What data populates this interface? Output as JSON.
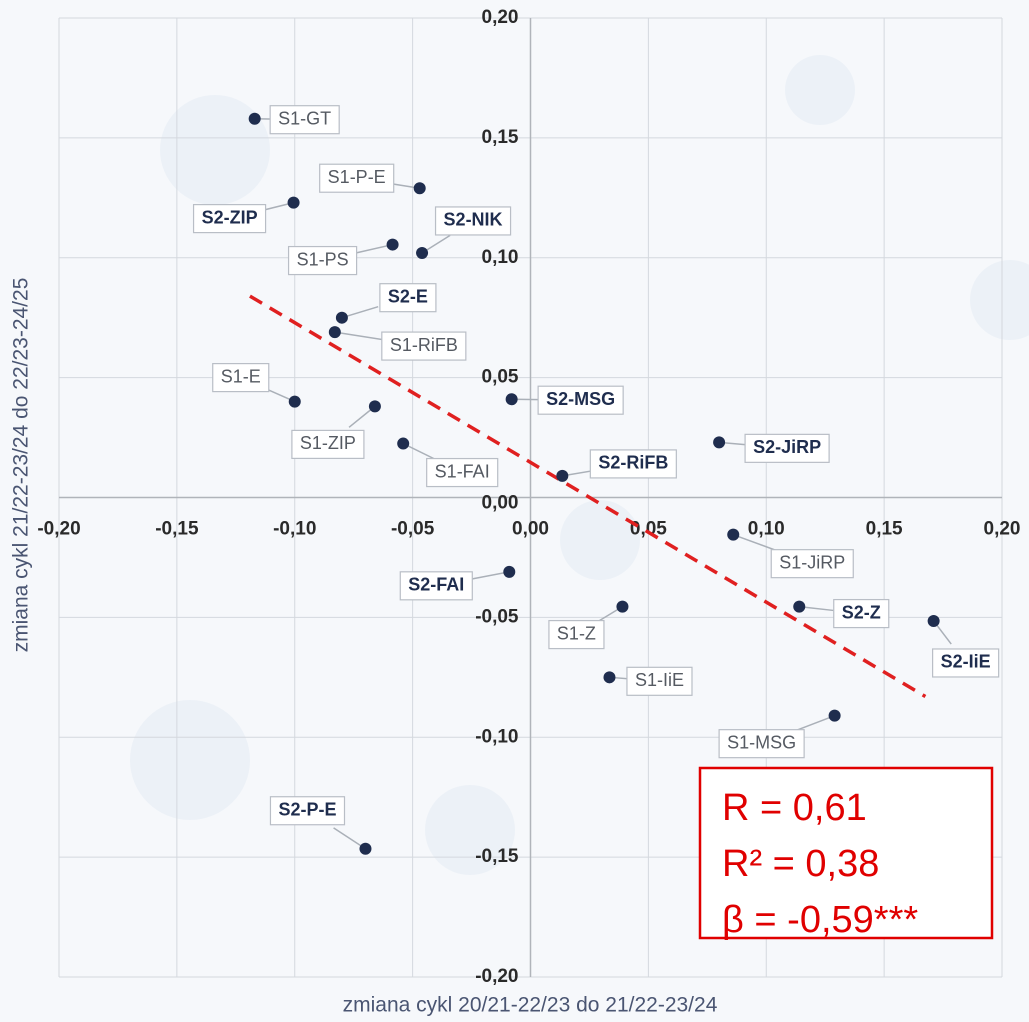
{
  "chart_data": {
    "type": "scatter",
    "x_label": "zmiana cykl 20/21-22/23 do 21/22-23/24",
    "y_label": "zmiana cykl 21/22-23/24 do 22/23-24/25",
    "xlim": [
      -0.2,
      0.2
    ],
    "ylim": [
      -0.2,
      0.2
    ],
    "xticks": [
      {
        "value": -0.2,
        "label": "-0,20"
      },
      {
        "value": -0.15,
        "label": "-0,15"
      },
      {
        "value": -0.1,
        "label": "-0,10"
      },
      {
        "value": -0.05,
        "label": "-0,05"
      },
      {
        "value": 0,
        "label": "0,00"
      },
      {
        "value": 0.05,
        "label": "0,05"
      },
      {
        "value": 0.1,
        "label": "0,10"
      },
      {
        "value": 0.15,
        "label": "0,15"
      },
      {
        "value": 0.2,
        "label": "0,20"
      }
    ],
    "yticks": [
      {
        "value": -0.2,
        "label": "-0,20"
      },
      {
        "value": -0.15,
        "label": "-0,15"
      },
      {
        "value": -0.1,
        "label": "-0,10"
      },
      {
        "value": -0.05,
        "label": "-0,05"
      },
      {
        "value": 0,
        "label": "0,00"
      },
      {
        "value": 0.05,
        "label": "0,05"
      },
      {
        "value": 0.1,
        "label": "0,10"
      },
      {
        "value": 0.15,
        "label": "0,15"
      },
      {
        "value": 0.2,
        "label": "0,20"
      }
    ],
    "grid": true,
    "color": "#1f2d4e",
    "trendline_color": "#e02020",
    "labels": [
      "S1-GT",
      "S1-P-E",
      "S2-ZIP",
      "S1-PS",
      "S2-NIK",
      "S2-E",
      "S1-RiFB",
      "S1-E",
      "S1-ZIP",
      "S1-FAI",
      "S2-MSG",
      "S2-RiFB",
      "S2-JiRP",
      "S1-JiRP",
      "S2-FAI",
      "S1-Z",
      "S2-Z",
      "S2-IiE",
      "S1-IiE",
      "S1-MSG",
      "S2-P-E"
    ],
    "x": [
      -0.117,
      -0.047,
      -0.1005,
      -0.0585,
      -0.046,
      -0.08,
      -0.083,
      -0.1,
      -0.066,
      -0.054,
      -0.008,
      0.0135,
      0.08,
      0.086,
      -0.009,
      0.039,
      0.114,
      0.171,
      0.0335,
      0.129,
      -0.07
    ],
    "y": [
      0.158,
      0.129,
      0.123,
      0.1055,
      0.102,
      0.075,
      0.069,
      0.04,
      0.038,
      0.0225,
      0.041,
      0.009,
      0.023,
      -0.0155,
      -0.031,
      -0.0455,
      -0.0455,
      -0.0515,
      -0.075,
      -0.091,
      -0.1465
    ],
    "trendline": {
      "x": [
        -0.119,
        0.1675
      ],
      "y": [
        0.084,
        -0.083
      ]
    },
    "stats": [
      "R = 0,61",
      "R² = 0,38",
      "β = -0,59***"
    ]
  }
}
